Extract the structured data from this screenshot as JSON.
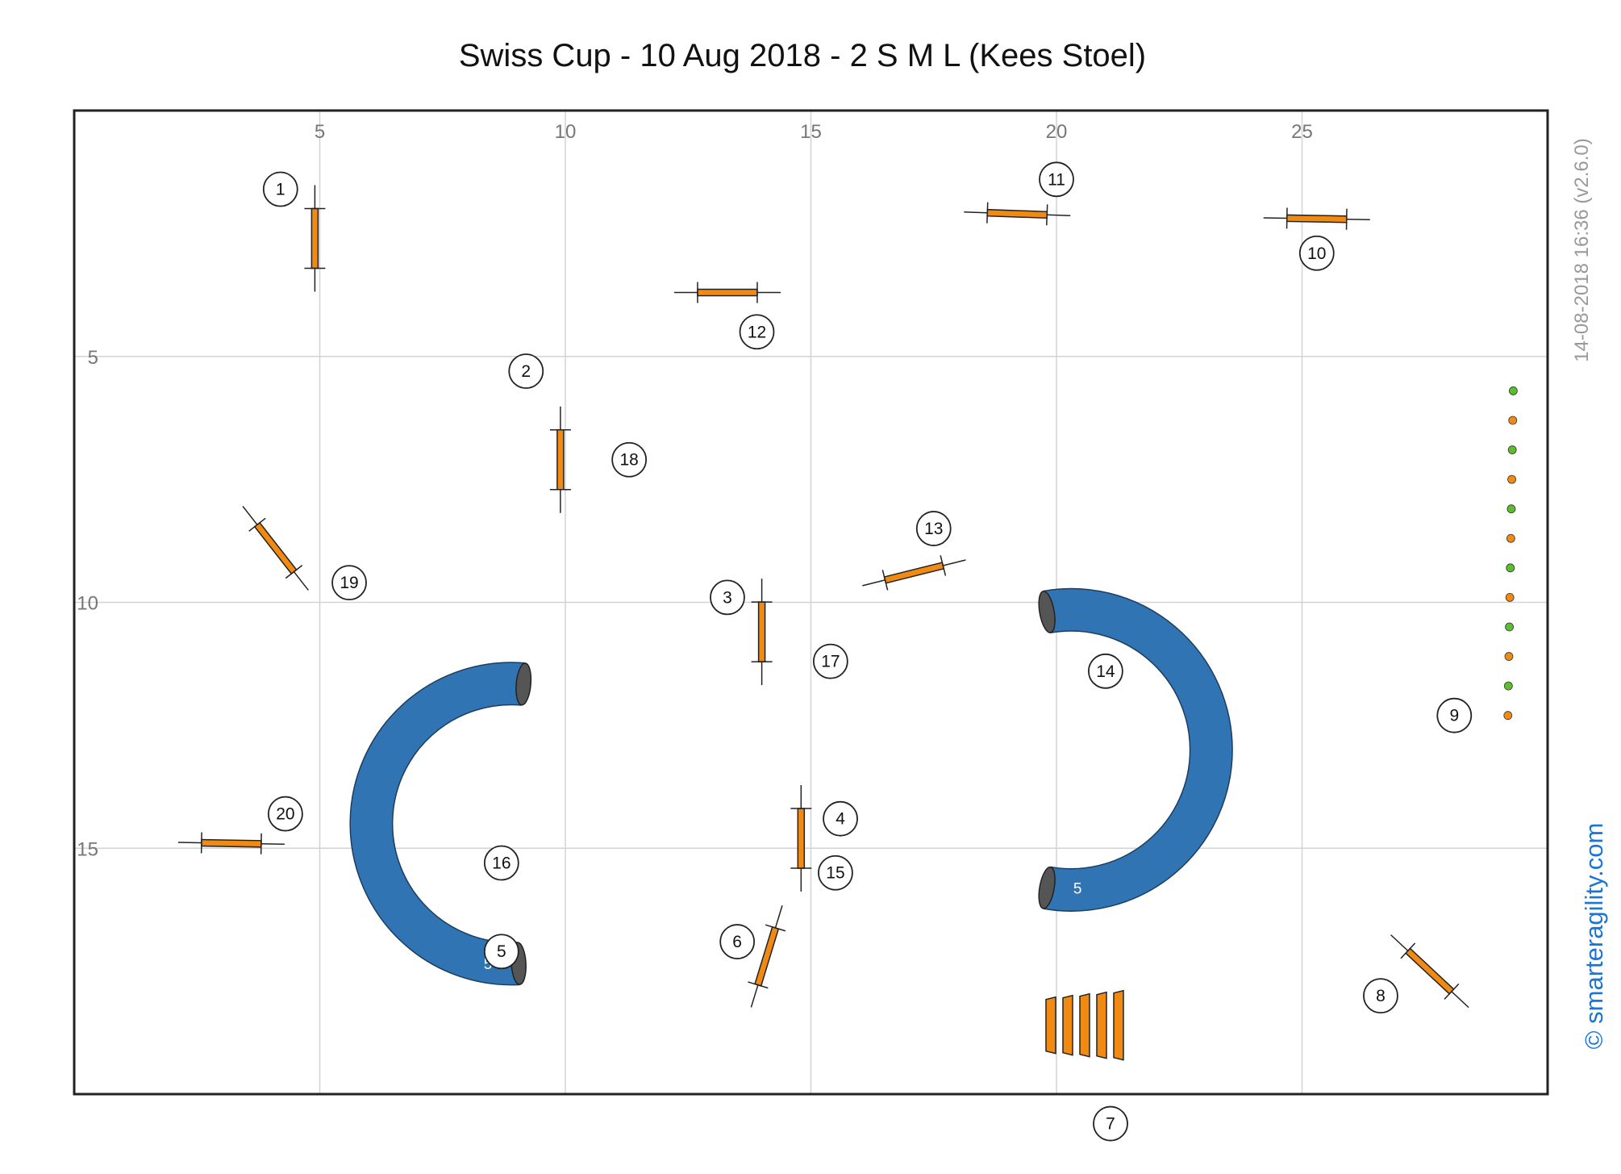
{
  "title": "Swiss Cup - 10 Aug 2018 - 2 S M L (Kees Stoel)",
  "timestamp": "14-08-2018 16:36  (v2.6.0)",
  "credit": "© smarteragility.com",
  "colors": {
    "obstacle": "#f08a12",
    "tunnel": "#3174b4",
    "tunnel_end": "#555555",
    "weave_green": "#5bbf2b",
    "weave_orange": "#f08a12",
    "grid": "#d3d3d3",
    "frame": "#222222"
  },
  "chart_data": {
    "type": "diagram",
    "xlim": [
      0,
      30
    ],
    "ylim": [
      0,
      20
    ],
    "x_ticks": [
      "5",
      "10",
      "15",
      "20",
      "25"
    ],
    "y_ticks": [
      "5",
      "10",
      "15"
    ],
    "jumps": [
      {
        "x": 4.9,
        "y": 2.6,
        "angle": 90
      },
      {
        "x": 9.9,
        "y": 7.1,
        "angle": 90
      },
      {
        "x": 14.0,
        "y": 10.6,
        "angle": 90
      },
      {
        "x": 14.8,
        "y": 14.8,
        "angle": 90
      },
      {
        "x": 14.1,
        "y": 17.2,
        "angle": 107
      },
      {
        "x": 27.6,
        "y": 17.5,
        "angle": 43
      },
      {
        "x": 25.3,
        "y": 2.2,
        "angle": 1
      },
      {
        "x": 19.2,
        "y": 2.1,
        "angle": 2
      },
      {
        "x": 13.3,
        "y": 3.7,
        "angle": 0
      },
      {
        "x": 17.1,
        "y": 9.4,
        "angle": -14
      },
      {
        "x": 4.1,
        "y": 8.9,
        "angle": 52
      },
      {
        "x": 3.2,
        "y": 14.9,
        "angle": 1
      }
    ],
    "tunnels": [
      {
        "label": "5",
        "cx": 8.9,
        "cy": 14.5,
        "r": 2.85,
        "start": 85,
        "end": 273
      },
      {
        "label": "5",
        "cx": 20.3,
        "cy": 13.0,
        "r": 2.85,
        "start": 260,
        "end": 460
      }
    ],
    "tire_wall": {
      "x": 21.1,
      "y": 18.6,
      "bars": 5
    },
    "weave_poles": {
      "x": 29.3,
      "y_start": 5.7,
      "y_end": 12.3,
      "count": 12
    },
    "numbers": [
      {
        "n": "1",
        "x": 4.2,
        "y": 1.6
      },
      {
        "n": "2",
        "x": 9.2,
        "y": 5.3
      },
      {
        "n": "3",
        "x": 13.3,
        "y": 9.9
      },
      {
        "n": "4",
        "x": 15.6,
        "y": 14.4
      },
      {
        "n": "5",
        "x": 8.7,
        "y": 17.1
      },
      {
        "n": "6",
        "x": 13.5,
        "y": 16.9
      },
      {
        "n": "7",
        "x": 21.1,
        "y": 20.6
      },
      {
        "n": "8",
        "x": 26.6,
        "y": 18.0
      },
      {
        "n": "9",
        "x": 28.1,
        "y": 12.3
      },
      {
        "n": "10",
        "x": 25.3,
        "y": 2.9
      },
      {
        "n": "11",
        "x": 20.0,
        "y": 1.4
      },
      {
        "n": "12",
        "x": 13.9,
        "y": 4.5
      },
      {
        "n": "13",
        "x": 17.5,
        "y": 8.5
      },
      {
        "n": "14",
        "x": 21.0,
        "y": 11.4
      },
      {
        "n": "15",
        "x": 15.5,
        "y": 15.5
      },
      {
        "n": "16",
        "x": 8.7,
        "y": 15.3
      },
      {
        "n": "17",
        "x": 15.4,
        "y": 11.2
      },
      {
        "n": "18",
        "x": 11.3,
        "y": 7.1
      },
      {
        "n": "19",
        "x": 5.6,
        "y": 9.6
      },
      {
        "n": "20",
        "x": 4.3,
        "y": 14.3
      }
    ]
  }
}
